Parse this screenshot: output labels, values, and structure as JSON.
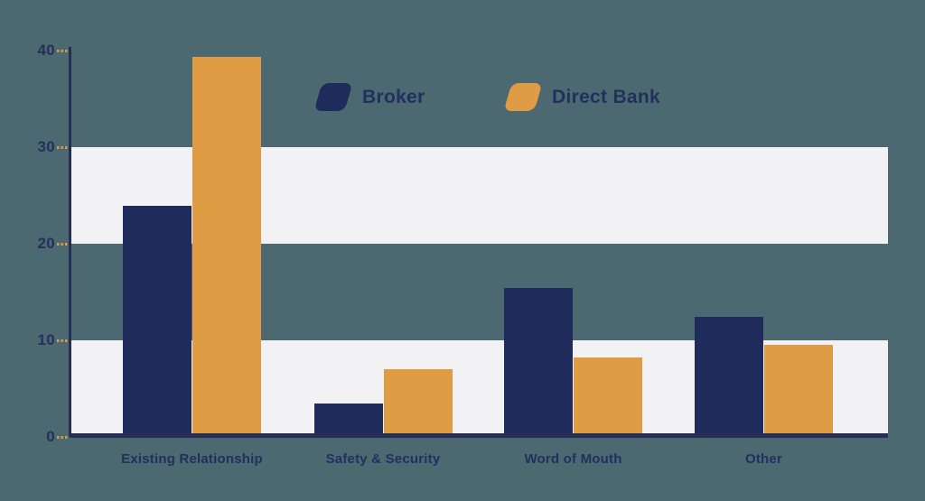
{
  "colors": {
    "background": "#4C6871",
    "broker": "#1F2B5B",
    "direct_bank": "#DF9C44",
    "band": "#F2F2F4",
    "axis": "#262E55",
    "tick_dash": "#D99A4E",
    "label_text": "#24305C"
  },
  "legend": {
    "items": [
      {
        "label": "Broker"
      },
      {
        "label": "Direct Bank"
      }
    ]
  },
  "chart_data": {
    "type": "bar",
    "categories": [
      "Existing Relationship",
      "Safety & Security",
      "Word of Mouth",
      "Other"
    ],
    "series": [
      {
        "name": "Broker",
        "color": "#1F2B5B",
        "values": [
          23.9,
          3.5,
          15.4,
          12.4
        ]
      },
      {
        "name": "Direct Bank",
        "color": "#DF9C44",
        "values": [
          39.3,
          7.0,
          8.2,
          9.5
        ]
      }
    ],
    "title": "",
    "xlabel": "",
    "ylabel": "",
    "ylim": [
      0,
      40
    ],
    "yticks": [
      0,
      10,
      20,
      30,
      40
    ],
    "grid_bands": [
      [
        0,
        10
      ],
      [
        20,
        30
      ]
    ],
    "legend_position": "top-center"
  }
}
